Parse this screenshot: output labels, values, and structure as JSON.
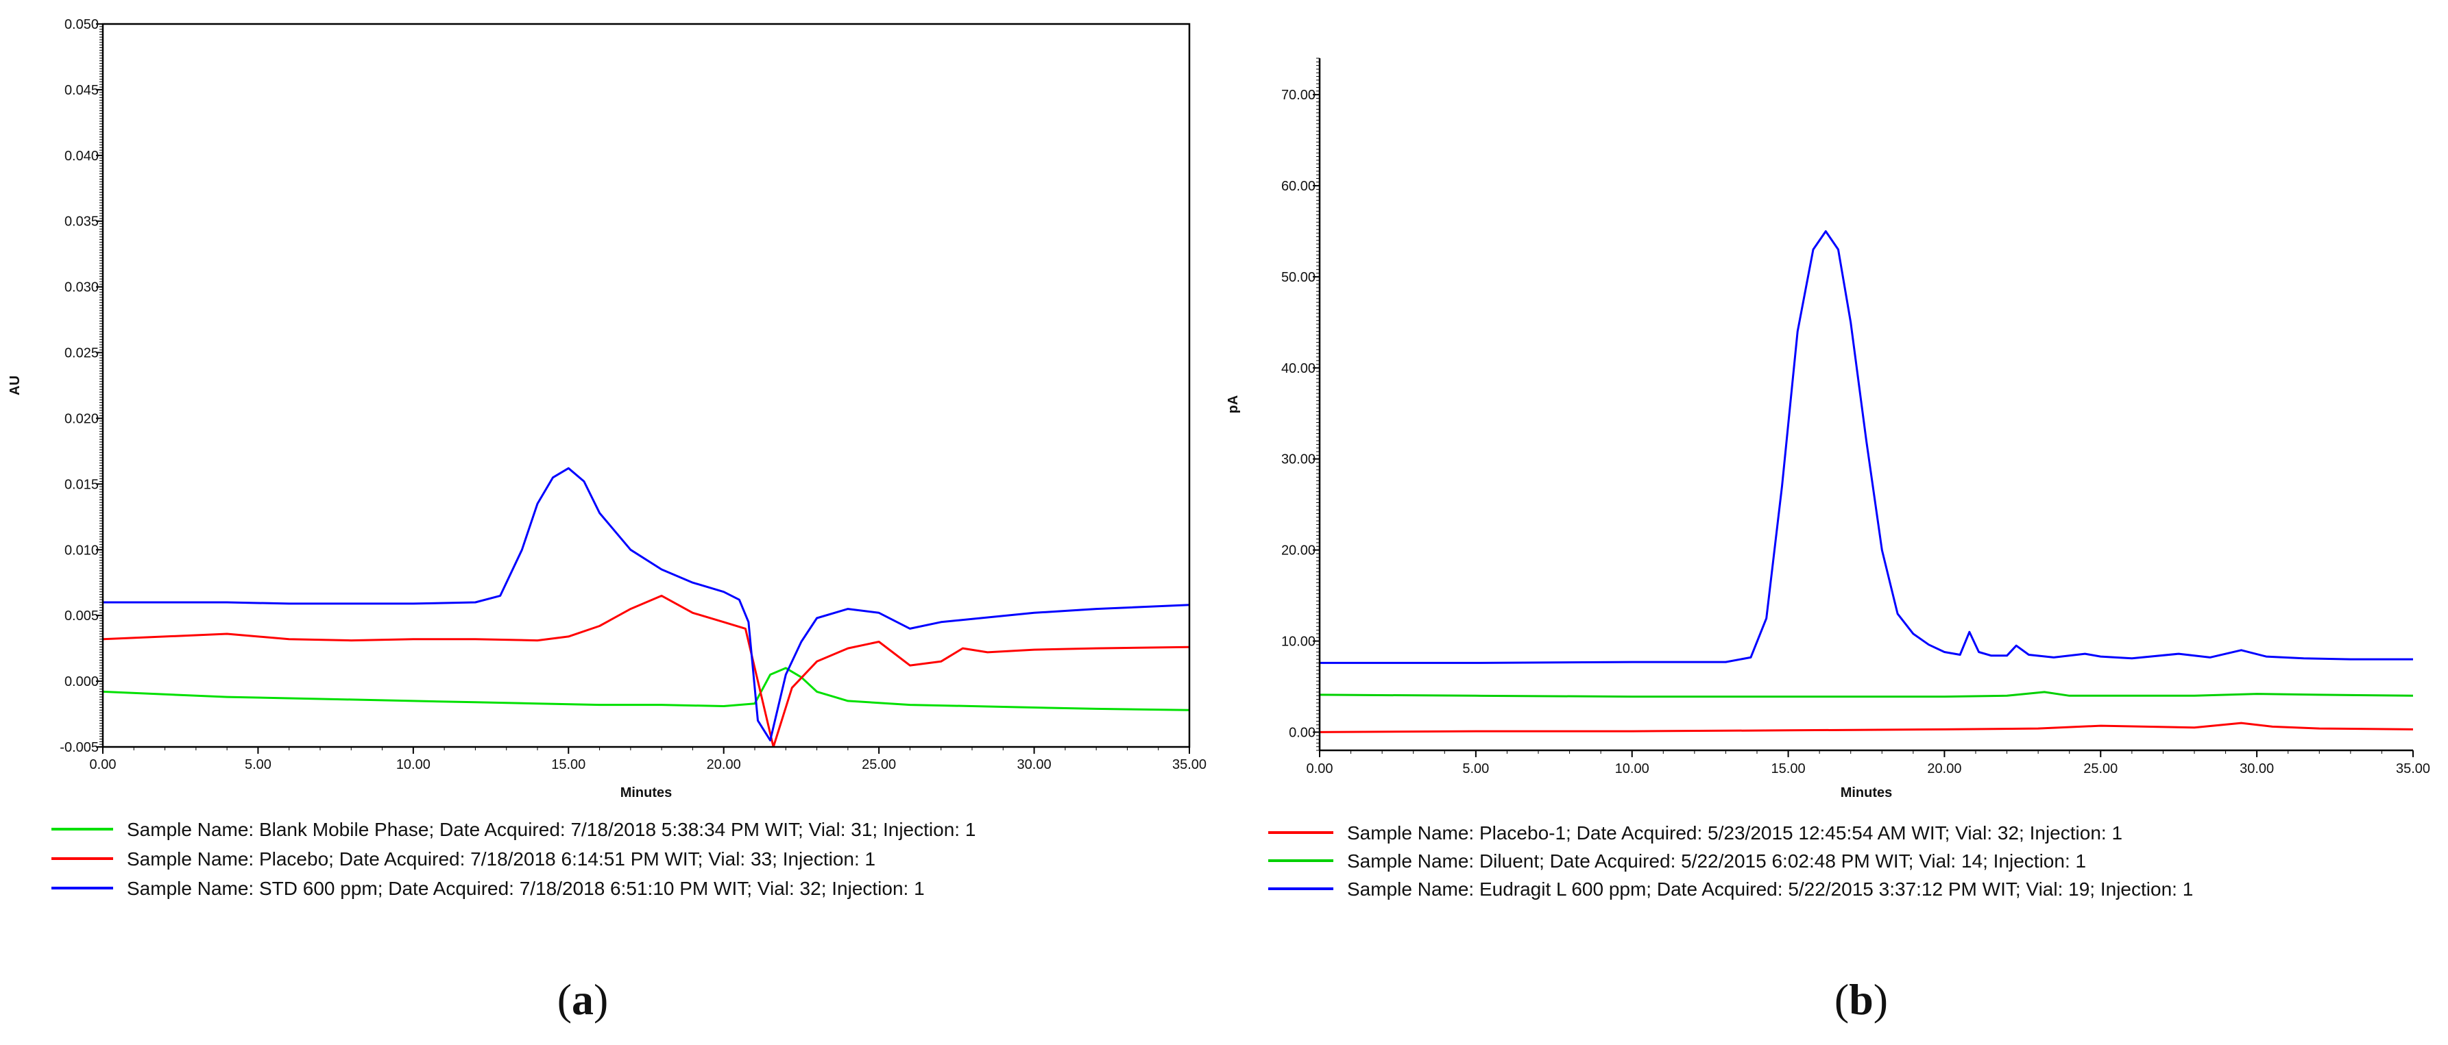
{
  "chart_data": [
    {
      "panel": "a",
      "type": "line",
      "xlabel": "Minutes",
      "ylabel": "AU",
      "xlim": [
        0,
        35
      ],
      "ylim": [
        -0.005,
        0.05
      ],
      "xticks": [
        "0.00",
        "5.00",
        "10.00",
        "15.00",
        "20.00",
        "25.00",
        "30.00",
        "35.00"
      ],
      "yticks": [
        "-0.005",
        "0.000",
        "0.005",
        "0.010",
        "0.015",
        "0.020",
        "0.025",
        "0.030",
        "0.035",
        "0.040",
        "0.045",
        "0.050"
      ],
      "panel_label_open": "(",
      "panel_label_letter": "a",
      "panel_label_close": ")",
      "series": [
        {
          "name": "Sample Name: Blank Mobile Phase;   Date Acquired: 7/18/2018 5:38:34 PM WIT;   Vial: 31; Injection: 1",
          "color": "#00e000",
          "x": [
            0,
            2,
            4,
            6,
            8,
            10,
            12,
            14,
            16,
            18,
            20,
            21,
            21.5,
            22,
            22.5,
            23,
            24,
            26,
            28,
            30,
            32,
            35
          ],
          "y": [
            -0.0008,
            -0.001,
            -0.0012,
            -0.0013,
            -0.0014,
            -0.0015,
            -0.0016,
            -0.0017,
            -0.0018,
            -0.0018,
            -0.0019,
            -0.0017,
            0.0005,
            0.001,
            0.0003,
            -0.0008,
            -0.0015,
            -0.0018,
            -0.0019,
            -0.002,
            -0.0021,
            -0.0022
          ]
        },
        {
          "name": "Sample Name: Placebo;   Date Acquired: 7/18/2018 6:14:51 PM WIT;   Vial: 33; Injection: 1",
          "color": "#ff0000",
          "x": [
            0,
            2,
            4,
            6,
            8,
            10,
            12,
            14,
            15,
            16,
            17,
            18,
            19,
            20,
            20.7,
            21.2,
            21.6,
            22.2,
            23,
            24,
            25,
            26,
            27,
            27.7,
            28.5,
            30,
            32,
            35
          ],
          "y": [
            0.0032,
            0.0034,
            0.0036,
            0.0032,
            0.0031,
            0.0032,
            0.0032,
            0.0031,
            0.0034,
            0.0042,
            0.0055,
            0.0065,
            0.0052,
            0.0045,
            0.004,
            -0.001,
            -0.005,
            -0.0005,
            0.0015,
            0.0025,
            0.003,
            0.0012,
            0.0015,
            0.0025,
            0.0022,
            0.0024,
            0.0025,
            0.0026
          ]
        },
        {
          "name": "Sample Name: STD 600 ppm;   Date Acquired: 7/18/2018 6:51:10 PM WIT;   Vial: 32; Injection: 1",
          "color": "#0000ff",
          "x": [
            0,
            2,
            4,
            6,
            8,
            10,
            12,
            12.8,
            13.5,
            14,
            14.5,
            15,
            15.5,
            16,
            17,
            18,
            19,
            20,
            20.5,
            20.8,
            21.1,
            21.5,
            22,
            22.5,
            23,
            24,
            25,
            26,
            27,
            30,
            32,
            35
          ],
          "y": [
            0.006,
            0.006,
            0.006,
            0.0059,
            0.0059,
            0.0059,
            0.006,
            0.0065,
            0.01,
            0.0135,
            0.0155,
            0.0162,
            0.0152,
            0.0128,
            0.01,
            0.0085,
            0.0075,
            0.0068,
            0.0062,
            0.0045,
            -0.003,
            -0.0045,
            0.0005,
            0.003,
            0.0048,
            0.0055,
            0.0052,
            0.004,
            0.0045,
            0.0052,
            0.0055,
            0.0058
          ]
        }
      ]
    },
    {
      "panel": "b",
      "type": "line",
      "xlabel": "Minutes",
      "ylabel": "pA",
      "xlim": [
        0,
        35
      ],
      "ylim": [
        -2,
        74
      ],
      "xticks": [
        "0.00",
        "5.00",
        "10.00",
        "15.00",
        "20.00",
        "25.00",
        "30.00",
        "35.00"
      ],
      "yticks": [
        "0.00",
        "10.00",
        "20.00",
        "30.00",
        "40.00",
        "50.00",
        "60.00",
        "70.00"
      ],
      "panel_label_open": "(",
      "panel_label_letter": "b",
      "panel_label_close": ")",
      "series": [
        {
          "name": "Sample Name: Placebo-1;   Date Acquired: 5/23/2015 12:45:54 AM WIT;   Vial: 32; Injection: 1",
          "color": "#ff0000",
          "x": [
            0,
            5,
            10,
            15,
            20,
            23,
            25,
            28,
            29.5,
            30.5,
            32,
            35
          ],
          "y": [
            0.0,
            0.1,
            0.1,
            0.2,
            0.3,
            0.4,
            0.7,
            0.5,
            1.0,
            0.6,
            0.4,
            0.3
          ]
        },
        {
          "name": "Sample Name: Diluent;   Date Acquired: 5/22/2015 6:02:48 PM WIT;   Vial: 14; Injection: 1",
          "color": "#00d000",
          "x": [
            0,
            5,
            10,
            15,
            20,
            22,
            23.2,
            24,
            25,
            28,
            30,
            32,
            35
          ],
          "y": [
            4.1,
            4.0,
            3.9,
            3.9,
            3.9,
            4.0,
            4.4,
            4.0,
            4.0,
            4.0,
            4.2,
            4.1,
            4.0
          ]
        },
        {
          "name": "Sample Name: Eudragit L 600 ppm;   Date Acquired: 5/22/2015 3:37:12 PM WIT;   Vial: 19; Injection: 1",
          "color": "#0000ff",
          "x": [
            0,
            5,
            10,
            13,
            13.8,
            14.3,
            14.8,
            15.3,
            15.8,
            16.2,
            16.6,
            17.0,
            17.5,
            18.0,
            18.5,
            19.0,
            19.5,
            20.0,
            20.5,
            20.8,
            21.1,
            21.5,
            22.0,
            22.3,
            22.7,
            23.5,
            24.5,
            25.0,
            26,
            27.5,
            28.5,
            29.5,
            30.3,
            31.5,
            33,
            35
          ],
          "y": [
            7.6,
            7.6,
            7.7,
            7.7,
            8.2,
            12.5,
            27.0,
            44.0,
            53.0,
            55.0,
            53.0,
            45.0,
            32.0,
            20.0,
            13.0,
            10.8,
            9.6,
            8.8,
            8.5,
            11.0,
            8.8,
            8.4,
            8.4,
            9.5,
            8.5,
            8.2,
            8.6,
            8.3,
            8.1,
            8.6,
            8.2,
            9.0,
            8.3,
            8.1,
            8.0,
            8.0
          ]
        }
      ]
    }
  ]
}
